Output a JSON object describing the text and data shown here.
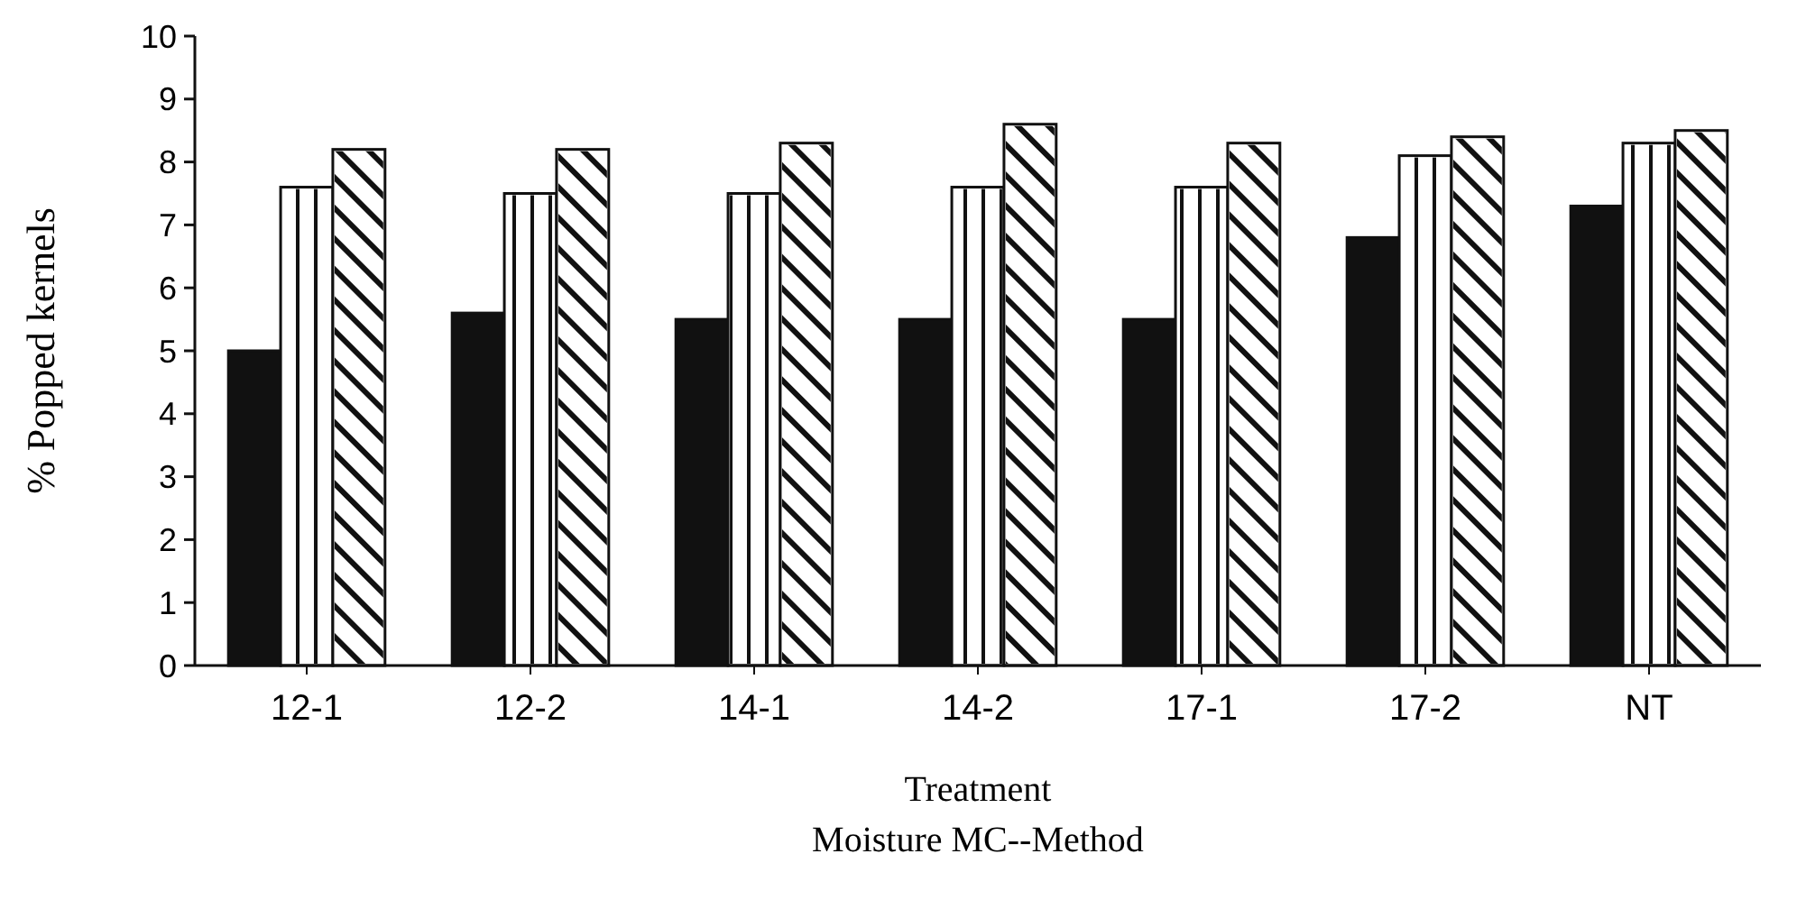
{
  "chart_data": {
    "type": "bar",
    "xlabel": "Treatment\nMoisture MC--Method",
    "ylabel": "% Popped kernels",
    "categories": [
      "12-1",
      "12-2",
      "14-1",
      "14-2",
      "17-1",
      "17-2",
      "NT"
    ],
    "series": [
      {
        "color": "#111111",
        "values": [
          5.0,
          5.6,
          5.5,
          5.5,
          5.5,
          6.8,
          7.3
        ]
      },
      {
        "color": "#ffffff",
        "values": [
          7.6,
          7.5,
          7.5,
          7.6,
          7.6,
          8.1,
          8.3
        ]
      },
      {
        "color": "#ffffff",
        "values": [
          8.2,
          8.2,
          8.3,
          8.6,
          8.3,
          8.4,
          8.5
        ]
      }
    ],
    "ylim": [
      0,
      10
    ],
    "yticks": [
      0,
      1,
      2,
      3,
      4,
      5,
      6,
      7,
      8,
      9,
      10
    ],
    "grid": false
  }
}
